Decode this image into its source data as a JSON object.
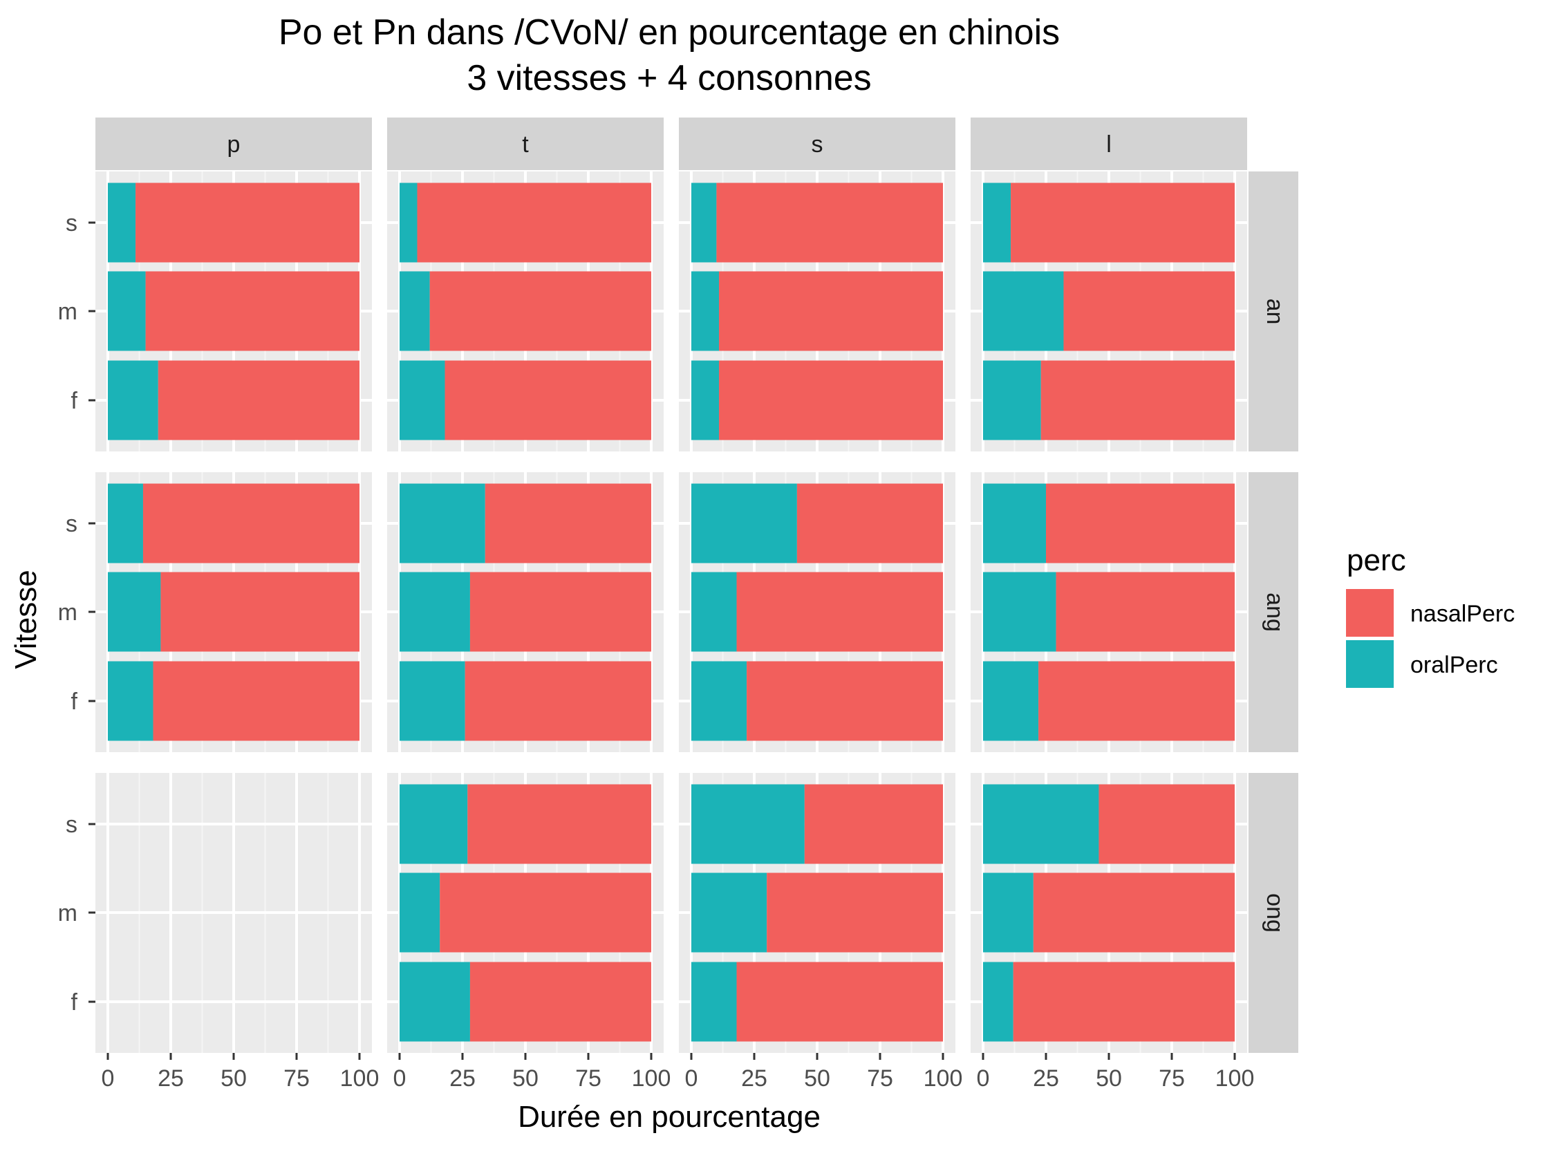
{
  "chart_data": {
    "type": "bar",
    "orientation": "horizontal",
    "stacked": true,
    "title": "Po et Pn dans /CVoN/ en pourcentage en chinois",
    "subtitle": "3 vitesses + 4 consonnes",
    "xlabel": "Durée en pourcentage",
    "ylabel": "Vitesse",
    "xlim": [
      0,
      100
    ],
    "x_ticks": [
      "0",
      "25",
      "50",
      "75",
      "100"
    ],
    "y_categories": [
      "s",
      "m",
      "f"
    ],
    "facet_columns": [
      "p",
      "t",
      "s",
      "l"
    ],
    "facet_rows": [
      "an",
      "ang",
      "ong"
    ],
    "grid": true,
    "legend": {
      "title": "perc",
      "position": "right",
      "entries": [
        {
          "name": "nasalPerc",
          "color": "#F25F5C"
        },
        {
          "name": "oralPerc",
          "color": "#1BB3B7"
        }
      ]
    },
    "series_note": "oralPerc values; nasalPerc = 100 - oralPerc",
    "panels": [
      {
        "row": "an",
        "col": "p",
        "oralPerc": {
          "s": 11,
          "m": 15,
          "f": 20
        }
      },
      {
        "row": "an",
        "col": "t",
        "oralPerc": {
          "s": 7,
          "m": 12,
          "f": 18
        }
      },
      {
        "row": "an",
        "col": "s",
        "oralPerc": {
          "s": 10,
          "m": 11,
          "f": 11
        }
      },
      {
        "row": "an",
        "col": "l",
        "oralPerc": {
          "s": 11,
          "m": 32,
          "f": 23
        }
      },
      {
        "row": "ang",
        "col": "p",
        "oralPerc": {
          "s": 14,
          "m": 21,
          "f": 18
        }
      },
      {
        "row": "ang",
        "col": "t",
        "oralPerc": {
          "s": 34,
          "m": 28,
          "f": 26
        }
      },
      {
        "row": "ang",
        "col": "s",
        "oralPerc": {
          "s": 42,
          "m": 18,
          "f": 22
        }
      },
      {
        "row": "ang",
        "col": "l",
        "oralPerc": {
          "s": 25,
          "m": 29,
          "f": 22
        }
      },
      {
        "row": "ong",
        "col": "p",
        "oralPerc": null
      },
      {
        "row": "ong",
        "col": "t",
        "oralPerc": {
          "s": 27,
          "m": 16,
          "f": 28
        }
      },
      {
        "row": "ong",
        "col": "s",
        "oralPerc": {
          "s": 45,
          "m": 30,
          "f": 18
        }
      },
      {
        "row": "ong",
        "col": "l",
        "oralPerc": {
          "s": 46,
          "m": 20,
          "f": 12
        }
      }
    ]
  }
}
